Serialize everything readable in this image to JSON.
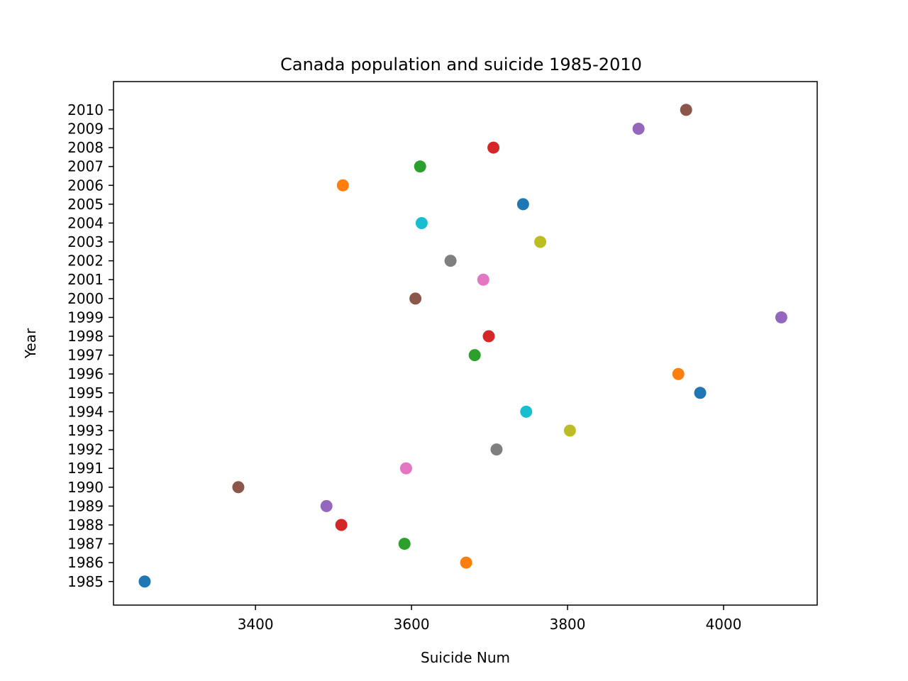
{
  "chart_data": {
    "type": "scatter",
    "title": "Canada population and suicide 1985-2010",
    "xlabel": "Suicide Num",
    "ylabel": "Year",
    "xlim": [
      3218,
      4120
    ],
    "ylim": [
      1983.75,
      2011.5
    ],
    "xticks": [
      3400,
      3600,
      3800,
      4000
    ],
    "yticks": [
      1985,
      1986,
      1987,
      1988,
      1989,
      1990,
      1991,
      1992,
      1993,
      1994,
      1995,
      1996,
      1997,
      1998,
      1999,
      2000,
      2001,
      2002,
      2003,
      2004,
      2005,
      2006,
      2007,
      2008,
      2009,
      2010
    ],
    "grid": false,
    "legend": "none",
    "colors": [
      "#1f77b4",
      "#ff7f0e",
      "#2ca02c",
      "#d62728",
      "#9467bd",
      "#8c564b",
      "#e377c2",
      "#7f7f7f",
      "#bcbd22",
      "#17becf"
    ],
    "points": [
      {
        "x": 3258,
        "y": 1985
      },
      {
        "x": 3670,
        "y": 1986
      },
      {
        "x": 3591,
        "y": 1987
      },
      {
        "x": 3510,
        "y": 1988
      },
      {
        "x": 3491,
        "y": 1989
      },
      {
        "x": 3378,
        "y": 1990
      },
      {
        "x": 3593,
        "y": 1991
      },
      {
        "x": 3709,
        "y": 1992
      },
      {
        "x": 3803,
        "y": 1993
      },
      {
        "x": 3747,
        "y": 1994
      },
      {
        "x": 3970,
        "y": 1995
      },
      {
        "x": 3942,
        "y": 1996
      },
      {
        "x": 3681,
        "y": 1997
      },
      {
        "x": 3699,
        "y": 1998
      },
      {
        "x": 4074,
        "y": 1999
      },
      {
        "x": 3605,
        "y": 2000
      },
      {
        "x": 3692,
        "y": 2001
      },
      {
        "x": 3650,
        "y": 2002
      },
      {
        "x": 3765,
        "y": 2003
      },
      {
        "x": 3613,
        "y": 2004
      },
      {
        "x": 3743,
        "y": 2005
      },
      {
        "x": 3512,
        "y": 2006
      },
      {
        "x": 3611,
        "y": 2007
      },
      {
        "x": 3705,
        "y": 2008
      },
      {
        "x": 3891,
        "y": 2009
      },
      {
        "x": 3952,
        "y": 2010
      }
    ]
  }
}
